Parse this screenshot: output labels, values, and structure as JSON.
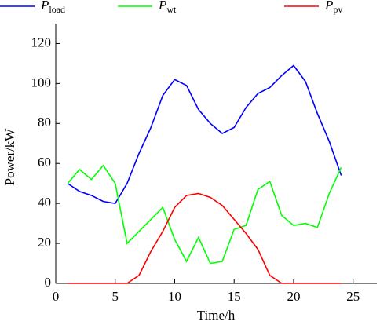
{
  "chart_data": {
    "type": "line",
    "x": [
      1,
      2,
      3,
      4,
      5,
      6,
      7,
      8,
      9,
      10,
      11,
      12,
      13,
      14,
      15,
      16,
      17,
      18,
      19,
      20,
      21,
      22,
      23,
      24
    ],
    "series": [
      {
        "name": "Pload",
        "color": "#0000ff",
        "values": [
          50,
          46,
          44,
          41,
          40,
          50,
          65,
          78,
          94,
          102,
          99,
          87,
          80,
          75,
          78,
          88,
          95,
          98,
          104,
          109,
          101,
          85,
          71,
          54
        ]
      },
      {
        "name": "Pwt",
        "color": "#00ff00",
        "values": [
          50,
          57,
          52,
          59,
          50,
          20,
          26,
          32,
          38,
          22,
          11,
          23,
          10,
          11,
          27,
          29,
          47,
          51,
          34,
          29,
          30,
          28,
          45,
          58
        ]
      },
      {
        "name": "Ppv",
        "color": "#ff0000",
        "values": [
          0,
          0,
          0,
          0,
          0,
          0,
          4,
          16,
          26,
          38,
          44,
          45,
          43,
          39,
          32,
          25,
          17,
          4,
          0,
          0,
          0,
          0,
          0,
          0
        ]
      }
    ],
    "xlabel": "Time/h",
    "ylabel": "Power/kW",
    "xlim": [
      0,
      27
    ],
    "ylim": [
      0,
      130
    ],
    "xticks": [
      0,
      5,
      10,
      15,
      20,
      25
    ],
    "yticks": [
      0,
      20,
      40,
      60,
      80,
      100,
      120
    ],
    "legend": "top"
  }
}
